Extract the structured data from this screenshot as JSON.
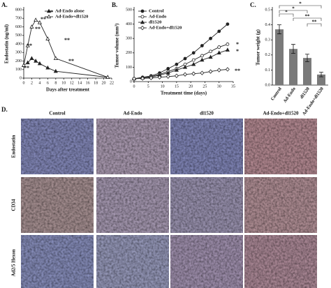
{
  "chart_data": [
    {
      "type": "line",
      "label": "A.",
      "xlabel": "Days after treatment",
      "ylabel": "Endostatin (ng/ml)",
      "x": [
        0,
        1,
        2,
        3,
        4,
        6,
        8,
        21
      ],
      "series": [
        {
          "name": "Ad-Endo alone",
          "color": "#222222",
          "marker": "triangle",
          "values": [
            150,
            180,
            230,
            200,
            170,
            120,
            80,
            10
          ]
        },
        {
          "name": "Ad-Endo+dl1520",
          "color": "#222222",
          "marker": "open-triangle",
          "values": [
            150,
            380,
            600,
            680,
            650,
            460,
            230,
            10
          ]
        }
      ],
      "xlim": [
        0,
        22
      ],
      "xticks": [
        0,
        2,
        4,
        6,
        8,
        10,
        12,
        14,
        16,
        18,
        20,
        22
      ],
      "ylim": [
        0,
        800
      ],
      "yticks": [
        0,
        100,
        200,
        300,
        400,
        500,
        600,
        700,
        800
      ],
      "legend": "top-right",
      "annotations": [
        "**",
        "**",
        "**",
        "**",
        "**",
        "**",
        "**"
      ]
    },
    {
      "type": "line",
      "label": "B.",
      "xlabel": "Treatment time (days)",
      "ylabel": "Tumor volume (mm³)",
      "x": [
        0,
        3,
        6,
        9,
        12,
        15,
        18,
        21,
        24,
        27,
        30,
        33
      ],
      "series": [
        {
          "name": "Control",
          "color": "#222222",
          "marker": "circle",
          "values": [
            20,
            30,
            40,
            60,
            90,
            120,
            160,
            200,
            250,
            300,
            350,
            400
          ]
        },
        {
          "name": "Ad-Endo",
          "color": "#222222",
          "marker": "open-circle",
          "values": [
            20,
            25,
            35,
            50,
            70,
            90,
            120,
            150,
            180,
            210,
            240,
            260
          ]
        },
        {
          "name": "dl1520",
          "color": "#222222",
          "marker": "triangle",
          "values": [
            20,
            25,
            30,
            45,
            60,
            80,
            100,
            120,
            150,
            170,
            200,
            220
          ]
        },
        {
          "name": "Ad-Endo+dl1520",
          "color": "#222222",
          "marker": "open-diamond",
          "values": [
            20,
            22,
            25,
            30,
            35,
            40,
            50,
            55,
            60,
            70,
            80,
            85
          ]
        }
      ],
      "xlim": [
        0,
        35
      ],
      "xticks": [
        0,
        5,
        10,
        15,
        20,
        25,
        30,
        35
      ],
      "ylim": [
        0,
        500
      ],
      "yticks": [
        0,
        100,
        200,
        300,
        400,
        500
      ],
      "legend": "top-left",
      "annotations": [
        "*",
        "*",
        "**"
      ]
    },
    {
      "type": "bar",
      "label": "C.",
      "ylabel": "Tumor weight (g)",
      "categories": [
        "Control",
        "Ad-Endo",
        "dl1520",
        "Ad-Endo+dl1520"
      ],
      "values": [
        0.37,
        0.24,
        0.18,
        0.07
      ],
      "errors": [
        0.03,
        0.03,
        0.025,
        0.015
      ],
      "color": "#7a7a7a",
      "ylim": [
        0,
        0.5
      ],
      "yticks": [
        {
          "value": 0,
          "label": "0.0"
        },
        0.1,
        0.2,
        0.3,
        0.4,
        0.5
      ],
      "annotations": [
        "*",
        "*",
        "*",
        "**",
        "**"
      ]
    }
  ],
  "panel_d": {
    "label": "D.",
    "columns": [
      "Control",
      "Ad-Endo",
      "dl1520",
      "Ad-Endo+dl1520"
    ],
    "rows": [
      "Endostatin",
      "CD34",
      "Ad2/5 Hexon"
    ]
  }
}
